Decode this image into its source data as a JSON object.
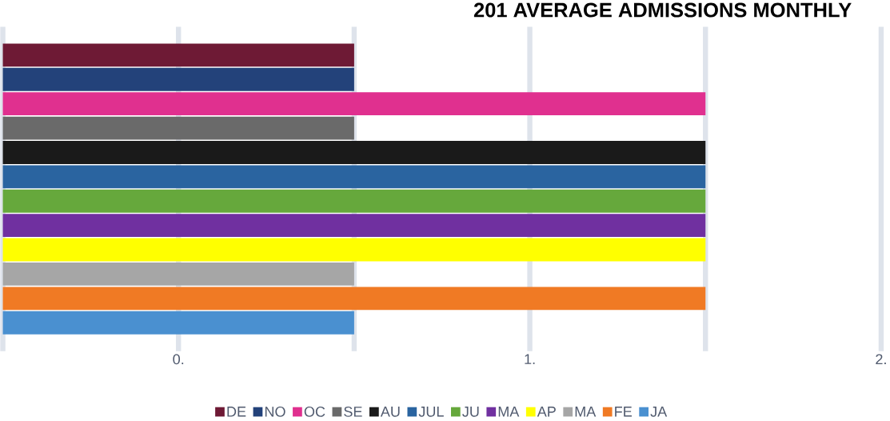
{
  "chart_data": {
    "type": "bar",
    "orientation": "horizontal",
    "title": "201 AVERAGE ADMISSIONS MONTHLY",
    "categories": [
      null
    ],
    "series": [
      {
        "name": "DE",
        "color": "#6e1a35",
        "values": [
          1
        ]
      },
      {
        "name": "NO",
        "color": "#23427a",
        "values": [
          1
        ]
      },
      {
        "name": "OC",
        "color": "#e0308f",
        "values": [
          2
        ]
      },
      {
        "name": "SE",
        "color": "#6a6a6a",
        "values": [
          1
        ]
      },
      {
        "name": "AU",
        "color": "#1a1a1a",
        "values": [
          2
        ]
      },
      {
        "name": "JUL",
        "color": "#2a64a0",
        "values": [
          2
        ]
      },
      {
        "name": "JU",
        "color": "#66a83c",
        "values": [
          2
        ]
      },
      {
        "name": "MA",
        "color": "#7030a0",
        "values": [
          2
        ]
      },
      {
        "name": "AP",
        "color": "#ffff00",
        "values": [
          2
        ]
      },
      {
        "name": "MA",
        "color": "#a6a6a6",
        "values": [
          1
        ]
      },
      {
        "name": "FE",
        "color": "#f07a24",
        "values": [
          2
        ]
      },
      {
        "name": "JA",
        "color": "#4a90d0",
        "values": [
          1
        ]
      }
    ],
    "xlim": [
      0,
      2.5
    ],
    "xticks": [
      {
        "value": 0,
        "label": null
      },
      {
        "value": 0.5,
        "label": "0."
      },
      {
        "value": 1,
        "label": null
      },
      {
        "value": 1.5,
        "label": "1."
      },
      {
        "value": 2,
        "label": null
      },
      {
        "value": 2.5,
        "label": "2."
      }
    ],
    "grid": "x",
    "legend": "bottom"
  }
}
